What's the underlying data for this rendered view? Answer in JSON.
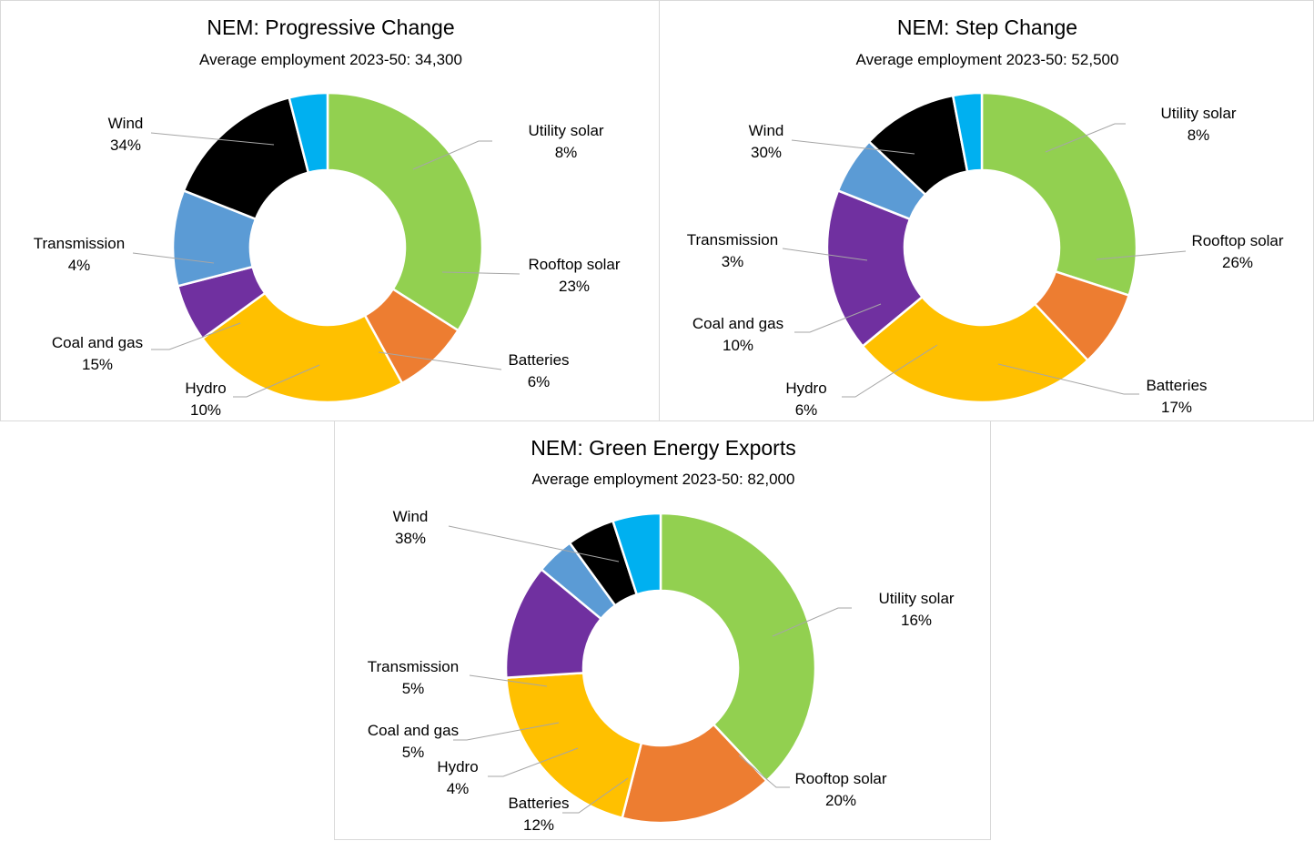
{
  "chart_data": [
    {
      "type": "donut",
      "title": "NEM: Progressive Change",
      "subtitle": "Average employment 2023-50: 34,300",
      "categories": [
        "Wind",
        "Utility solar",
        "Rooftop solar",
        "Batteries",
        "Hydro",
        "Coal and gas",
        "Transmission"
      ],
      "values": [
        34,
        8,
        23,
        6,
        10,
        15,
        4
      ],
      "value_labels": [
        "34%",
        "8%",
        "23%",
        "6%",
        "10%",
        "15%",
        "4%"
      ]
    },
    {
      "type": "donut",
      "title": "NEM: Step Change",
      "subtitle": "Average employment 2023-50: 52,500",
      "categories": [
        "Wind",
        "Utility solar",
        "Rooftop solar",
        "Batteries",
        "Hydro",
        "Coal and gas",
        "Transmission"
      ],
      "values": [
        30,
        8,
        26,
        17,
        6,
        10,
        3
      ],
      "value_labels": [
        "30%",
        "8%",
        "26%",
        "17%",
        "6%",
        "10%",
        "3%"
      ]
    },
    {
      "type": "donut",
      "title": "NEM: Green Energy Exports",
      "subtitle": "Average employment 2023-50: 82,000",
      "categories": [
        "Wind",
        "Utility solar",
        "Rooftop solar",
        "Batteries",
        "Hydro",
        "Coal and gas",
        "Transmission"
      ],
      "values": [
        38,
        16,
        20,
        12,
        4,
        5,
        5
      ],
      "value_labels": [
        "38%",
        "16%",
        "20%",
        "12%",
        "4%",
        "5%",
        "5%"
      ]
    }
  ],
  "colors": {
    "Wind": "#92d050",
    "Utility solar": "#ed7d31",
    "Rooftop solar": "#ffc000",
    "Batteries": "#7030a0",
    "Hydro": "#5b9bd5",
    "Coal and gas": "#000000",
    "Transmission": "#00b0f0"
  }
}
